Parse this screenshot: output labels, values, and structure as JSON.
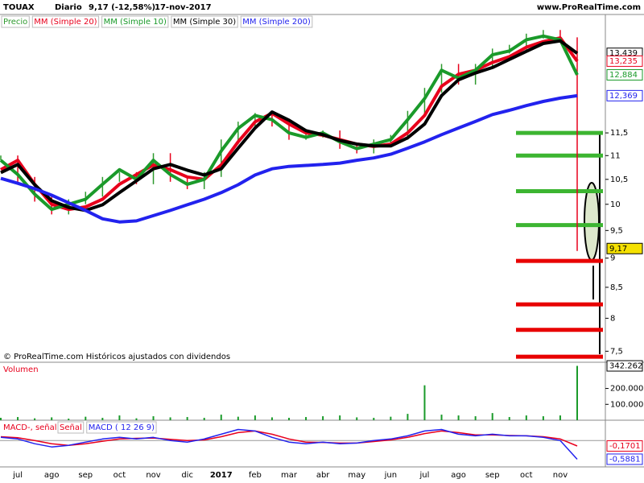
{
  "header": {
    "symbol": "TOUAX",
    "period": "Diario",
    "price": "9,17 (-12,58%)",
    "date": "17-nov-2017",
    "site": "www.ProRealTime.com"
  },
  "chart_data": [
    {
      "type": "line",
      "note": "© ProRealTime.com  Históricos ajustados con dividendos",
      "log_scale": true,
      "ylim": [
        7.34,
        14.5
      ],
      "yticks": [
        {
          "value": 7.5,
          "label": "7,5"
        },
        8,
        {
          "value": 8.5,
          "label": "8,5"
        },
        9,
        {
          "value": 9.5,
          "label": "9,5"
        },
        10,
        {
          "value": 10.5,
          "label": "10,5"
        },
        11,
        {
          "value": 11.5,
          "label": "11,5"
        }
      ],
      "series": [
        {
          "name": "Precio",
          "style": "bars",
          "color": "#2e9a2e",
          "values": [
            10.95,
            10.5,
            10.1,
            9.85,
            10.05,
            10.2,
            10.5,
            10.6,
            10.45,
            11.0,
            10.5,
            10.35,
            10.6,
            11.3,
            11.7,
            11.9,
            11.7,
            11.4,
            11.45,
            11.5,
            11.2,
            11.1,
            11.3,
            11.4,
            11.95,
            12.5,
            13.1,
            12.7,
            13.1,
            13.5,
            13.6,
            13.9,
            14.0,
            13.8,
            9.17
          ]
        },
        {
          "name": "MM (Simple 20)",
          "color": "#e8001c",
          "values": [
            10.7,
            10.9,
            10.4,
            10.0,
            9.9,
            9.95,
            10.1,
            10.4,
            10.6,
            10.8,
            10.7,
            10.55,
            10.5,
            10.8,
            11.3,
            11.75,
            11.95,
            11.7,
            11.5,
            11.45,
            11.35,
            11.25,
            11.2,
            11.25,
            11.5,
            11.9,
            12.6,
            12.9,
            13.0,
            13.2,
            13.35,
            13.6,
            13.75,
            13.85,
            13.235
          ]
        },
        {
          "name": "MM (Simple 10)",
          "color": "#1a9a2a",
          "values": [
            10.9,
            10.6,
            10.2,
            9.9,
            10.0,
            10.1,
            10.4,
            10.7,
            10.5,
            10.9,
            10.6,
            10.4,
            10.5,
            11.1,
            11.6,
            11.9,
            11.8,
            11.5,
            11.4,
            11.5,
            11.3,
            11.15,
            11.25,
            11.35,
            11.8,
            12.3,
            13.0,
            12.8,
            13.0,
            13.4,
            13.5,
            13.8,
            13.9,
            13.8,
            12.884
          ]
        },
        {
          "name": "MM (Simple 30)",
          "color": "#000000",
          "values": [
            10.64,
            10.81,
            10.39,
            10.07,
            9.94,
            9.88,
            9.99,
            10.23,
            10.47,
            10.72,
            10.81,
            10.69,
            10.59,
            10.72,
            11.16,
            11.61,
            11.98,
            11.79,
            11.55,
            11.46,
            11.33,
            11.25,
            11.21,
            11.21,
            11.39,
            11.7,
            12.37,
            12.76,
            12.93,
            13.07,
            13.28,
            13.49,
            13.7,
            13.77,
            13.439
          ]
        },
        {
          "name": "MM (Simple 200)",
          "color": "#2222ee",
          "values": [
            10.52,
            10.42,
            10.31,
            10.18,
            10.03,
            9.88,
            9.72,
            9.66,
            9.68,
            9.78,
            9.88,
            9.99,
            10.1,
            10.23,
            10.39,
            10.59,
            10.72,
            10.77,
            10.79,
            10.81,
            10.84,
            10.9,
            10.95,
            11.03,
            11.16,
            11.3,
            11.46,
            11.61,
            11.76,
            11.92,
            12.02,
            12.13,
            12.23,
            12.31,
            12.369
          ]
        }
      ],
      "tags": [
        {
          "value": 13.439,
          "label": "13,439",
          "color": "#000000",
          "fill": "#ffffff"
        },
        {
          "value": 13.235,
          "label": "13,235",
          "color": "#e8001c",
          "fill": "#ffffff"
        },
        {
          "value": 12.884,
          "label": "12,884",
          "color": "#1a9a2a",
          "fill": "#ffffff"
        },
        {
          "value": 12.369,
          "label": "12,369",
          "color": "#2222ee",
          "fill": "#ffffff"
        },
        {
          "value": 9.17,
          "label": "9,17",
          "color": "#000000",
          "fill": "#f5e100"
        }
      ],
      "levels": [
        {
          "value": 11.5,
          "color": "#3cb531"
        },
        {
          "value": 11.0,
          "color": "#3cb531"
        },
        {
          "value": 10.26,
          "color": "#3cb531"
        },
        {
          "value": 9.6,
          "color": "#3cb531"
        },
        {
          "value": 8.95,
          "color": "#e80000"
        },
        {
          "value": 8.22,
          "color": "#e80000"
        },
        {
          "value": 7.82,
          "color": "#e80000"
        },
        {
          "value": 7.42,
          "color": "#e80000"
        }
      ]
    },
    {
      "type": "bar",
      "title": "Volumen",
      "color": "#1a9a2a",
      "ylim": [
        0,
        355000
      ],
      "yticks": [
        {
          "value": 100000,
          "label": "100.000"
        },
        {
          "value": 200000,
          "label": "200.000"
        }
      ],
      "values": [
        15000,
        20000,
        12000,
        18000,
        10000,
        22000,
        15000,
        30000,
        12000,
        25000,
        18000,
        20000,
        15000,
        35000,
        22000,
        30000,
        18000,
        15000,
        20000,
        25000,
        30000,
        18000,
        15000,
        22000,
        40000,
        220000,
        35000,
        30000,
        25000,
        45000,
        20000,
        30000,
        25000,
        30000,
        342262
      ],
      "tags": [
        {
          "value": 342262,
          "label": "342.262",
          "color": "#000000",
          "fill": "#ffffff"
        }
      ]
    },
    {
      "type": "line",
      "title": "MACD-, señal",
      "ylim": [
        -0.83,
        0.59
      ],
      "categories": [
        null,
        "jul",
        null,
        "ago",
        null,
        "sep",
        null,
        "oct",
        null,
        "nov",
        null,
        "dic",
        null,
        "2017",
        null,
        "feb",
        null,
        "mar",
        null,
        "abr",
        null,
        "may",
        null,
        "jun",
        null,
        "jul",
        null,
        "ago",
        null,
        "sep",
        null,
        "oct",
        null,
        "nov",
        null
      ],
      "series": [
        {
          "name": "Señal",
          "color": "#e8001c",
          "values": [
            0.12,
            0.09,
            0.0,
            -0.1,
            -0.15,
            -0.1,
            -0.02,
            0.05,
            0.07,
            0.08,
            0.04,
            0.0,
            0.02,
            0.12,
            0.25,
            0.3,
            0.2,
            0.05,
            -0.05,
            -0.06,
            -0.08,
            -0.08,
            -0.03,
            0.02,
            0.1,
            0.22,
            0.3,
            0.25,
            0.18,
            0.18,
            0.16,
            0.15,
            0.12,
            0.05,
            -0.1701
          ]
        },
        {
          "name": "MACD ( 12 26 9)",
          "color": "#2222ee",
          "values": [
            0.1,
            0.05,
            -0.1,
            -0.2,
            -0.15,
            -0.05,
            0.05,
            0.1,
            0.05,
            0.1,
            0.0,
            -0.05,
            0.05,
            0.2,
            0.35,
            0.3,
            0.1,
            -0.05,
            -0.1,
            -0.05,
            -0.1,
            -0.08,
            0.0,
            0.05,
            0.15,
            0.3,
            0.35,
            0.2,
            0.15,
            0.2,
            0.15,
            0.15,
            0.1,
            0.0,
            -0.5881
          ]
        }
      ],
      "tags": [
        {
          "value": -0.1701,
          "label": "-0,1701",
          "color": "#e8001c",
          "fill": "#ffffff"
        },
        {
          "value": -0.5881,
          "label": "-0,5881",
          "color": "#2222ee",
          "fill": "#ffffff"
        }
      ]
    }
  ]
}
